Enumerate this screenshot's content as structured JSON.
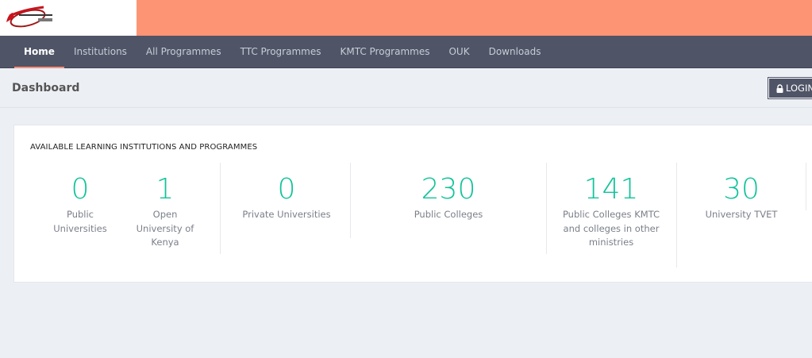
{
  "nav": {
    "items": [
      "Home",
      "Institutions",
      "All Programmes",
      "TTC Programmes",
      "KMTC Programmes",
      "OUK",
      "Downloads"
    ]
  },
  "header": {
    "title": "Dashboard",
    "login": "LOGIN"
  },
  "card": {
    "title": "AVAILABLE LEARNING INSTITUTIONS AND PROGRAMMES",
    "stats": [
      {
        "value": "0",
        "label": "Public Universities"
      },
      {
        "value": "1",
        "label": "Open University of Kenya"
      },
      {
        "value": "0",
        "label": "Private Universities"
      },
      {
        "value": "230",
        "label": "Public Colleges"
      },
      {
        "value": "141",
        "label": "Public Colleges KMTC and colleges in other ministries"
      },
      {
        "value": "30",
        "label": "University TVET"
      }
    ]
  },
  "colors": {
    "brand": "#fd9574",
    "nav": "#4f5467",
    "accent": "#12c39a"
  }
}
